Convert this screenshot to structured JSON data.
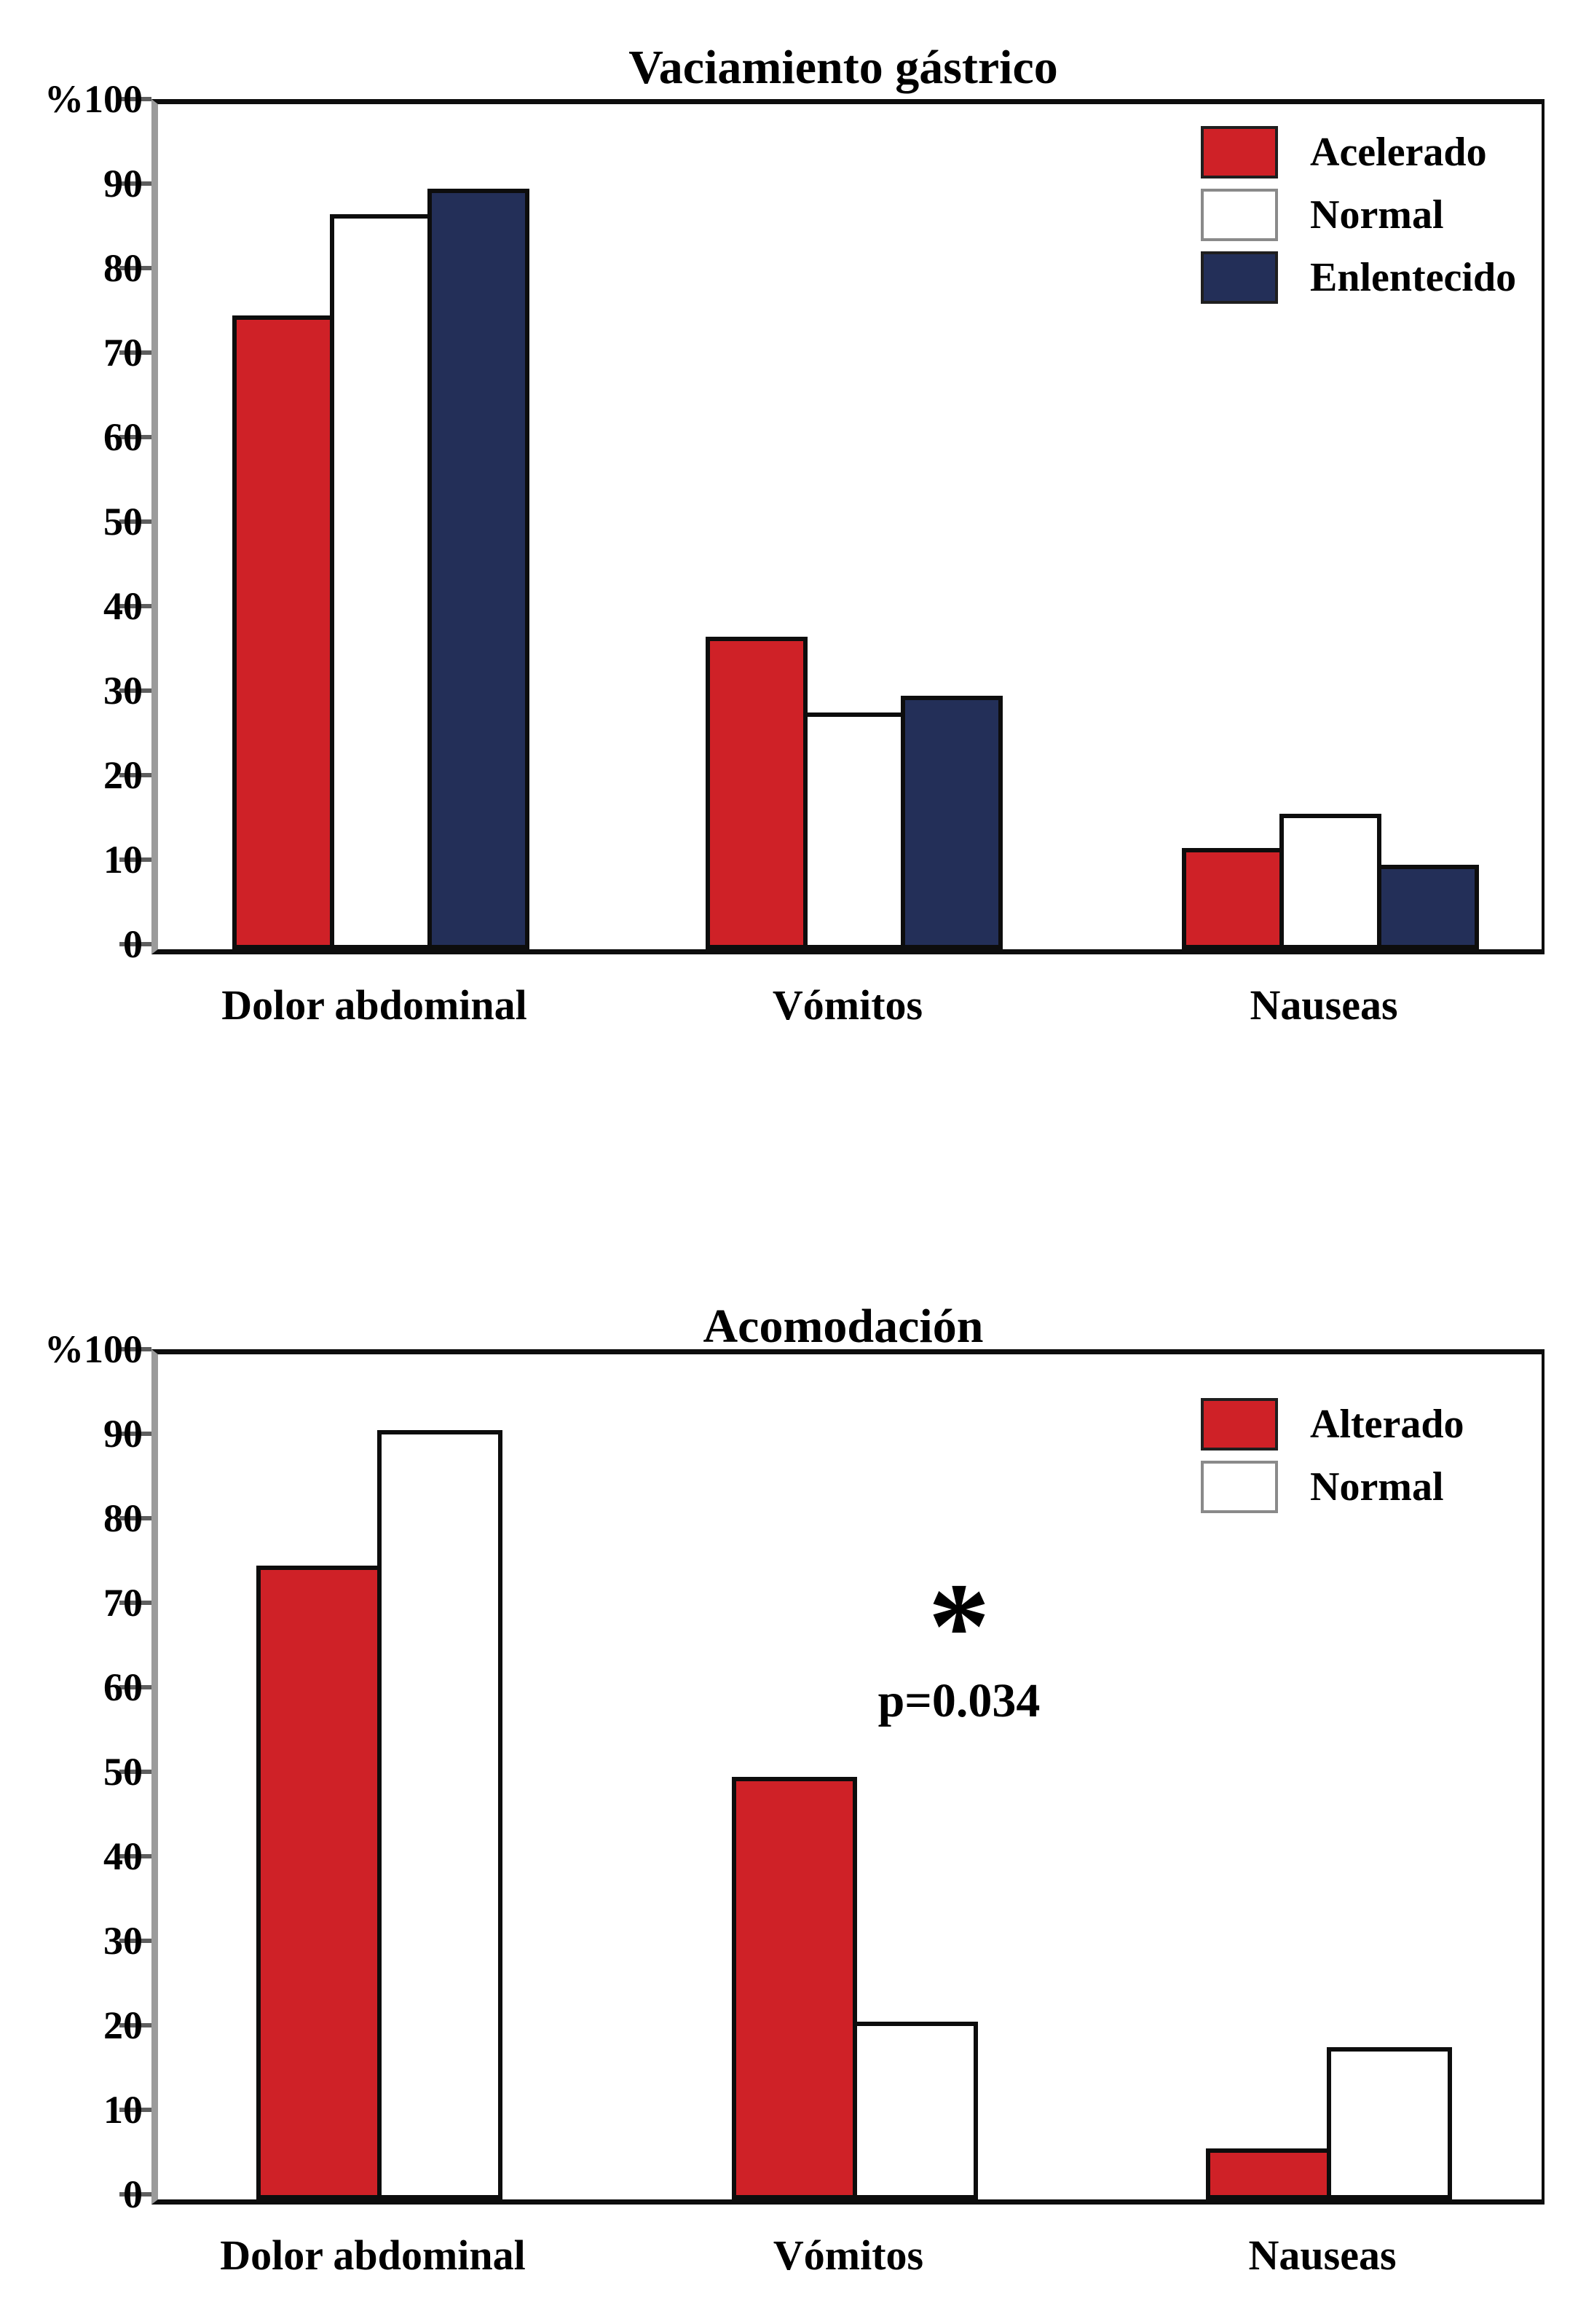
{
  "figure_background": "#ffffff",
  "colors": {
    "red": "#cf2127",
    "navy": "#232f58",
    "white": "#ffffff",
    "bar_border": "#0d0d0d",
    "axis_line": "#9b9b9b",
    "tick": "#5e5e5e"
  },
  "chart_data": [
    {
      "type": "bar",
      "title": "Vaciamiento gástrico",
      "categories": [
        "Dolor abdominal",
        "Vómitos",
        "Nauseas"
      ],
      "series": [
        {
          "name": "Acelerado",
          "color": "#cf2127",
          "values": [
            75,
            37,
            12
          ]
        },
        {
          "name": "Normal",
          "color": "#ffffff",
          "values": [
            87,
            28,
            16
          ]
        },
        {
          "name": "Enlentecido",
          "color": "#232f58",
          "values": [
            90,
            30,
            10
          ]
        }
      ],
      "y_axis": {
        "unit": "%",
        "min": 0,
        "max": 100,
        "ticks": [
          100,
          90,
          80,
          70,
          60,
          50,
          40,
          30,
          20,
          10,
          0
        ]
      },
      "legend_position": "top-right",
      "grid": false
    },
    {
      "type": "bar",
      "title": "Acomodación",
      "categories": [
        "Dolor abdominal",
        "Vómitos",
        "Nauseas"
      ],
      "series": [
        {
          "name": "Alterado",
          "color": "#cf2127",
          "values": [
            75,
            50,
            6
          ]
        },
        {
          "name": "Normal",
          "color": "#ffffff",
          "values": [
            91,
            21,
            18
          ]
        }
      ],
      "y_axis": {
        "unit": "%",
        "min": 0,
        "max": 100,
        "ticks": [
          100,
          90,
          80,
          70,
          60,
          50,
          40,
          30,
          20,
          10,
          0
        ]
      },
      "legend_position": "top-right",
      "grid": false,
      "annotation": {
        "symbol": "*",
        "text": "p=0.034",
        "target_category": "Vómitos"
      }
    }
  ]
}
